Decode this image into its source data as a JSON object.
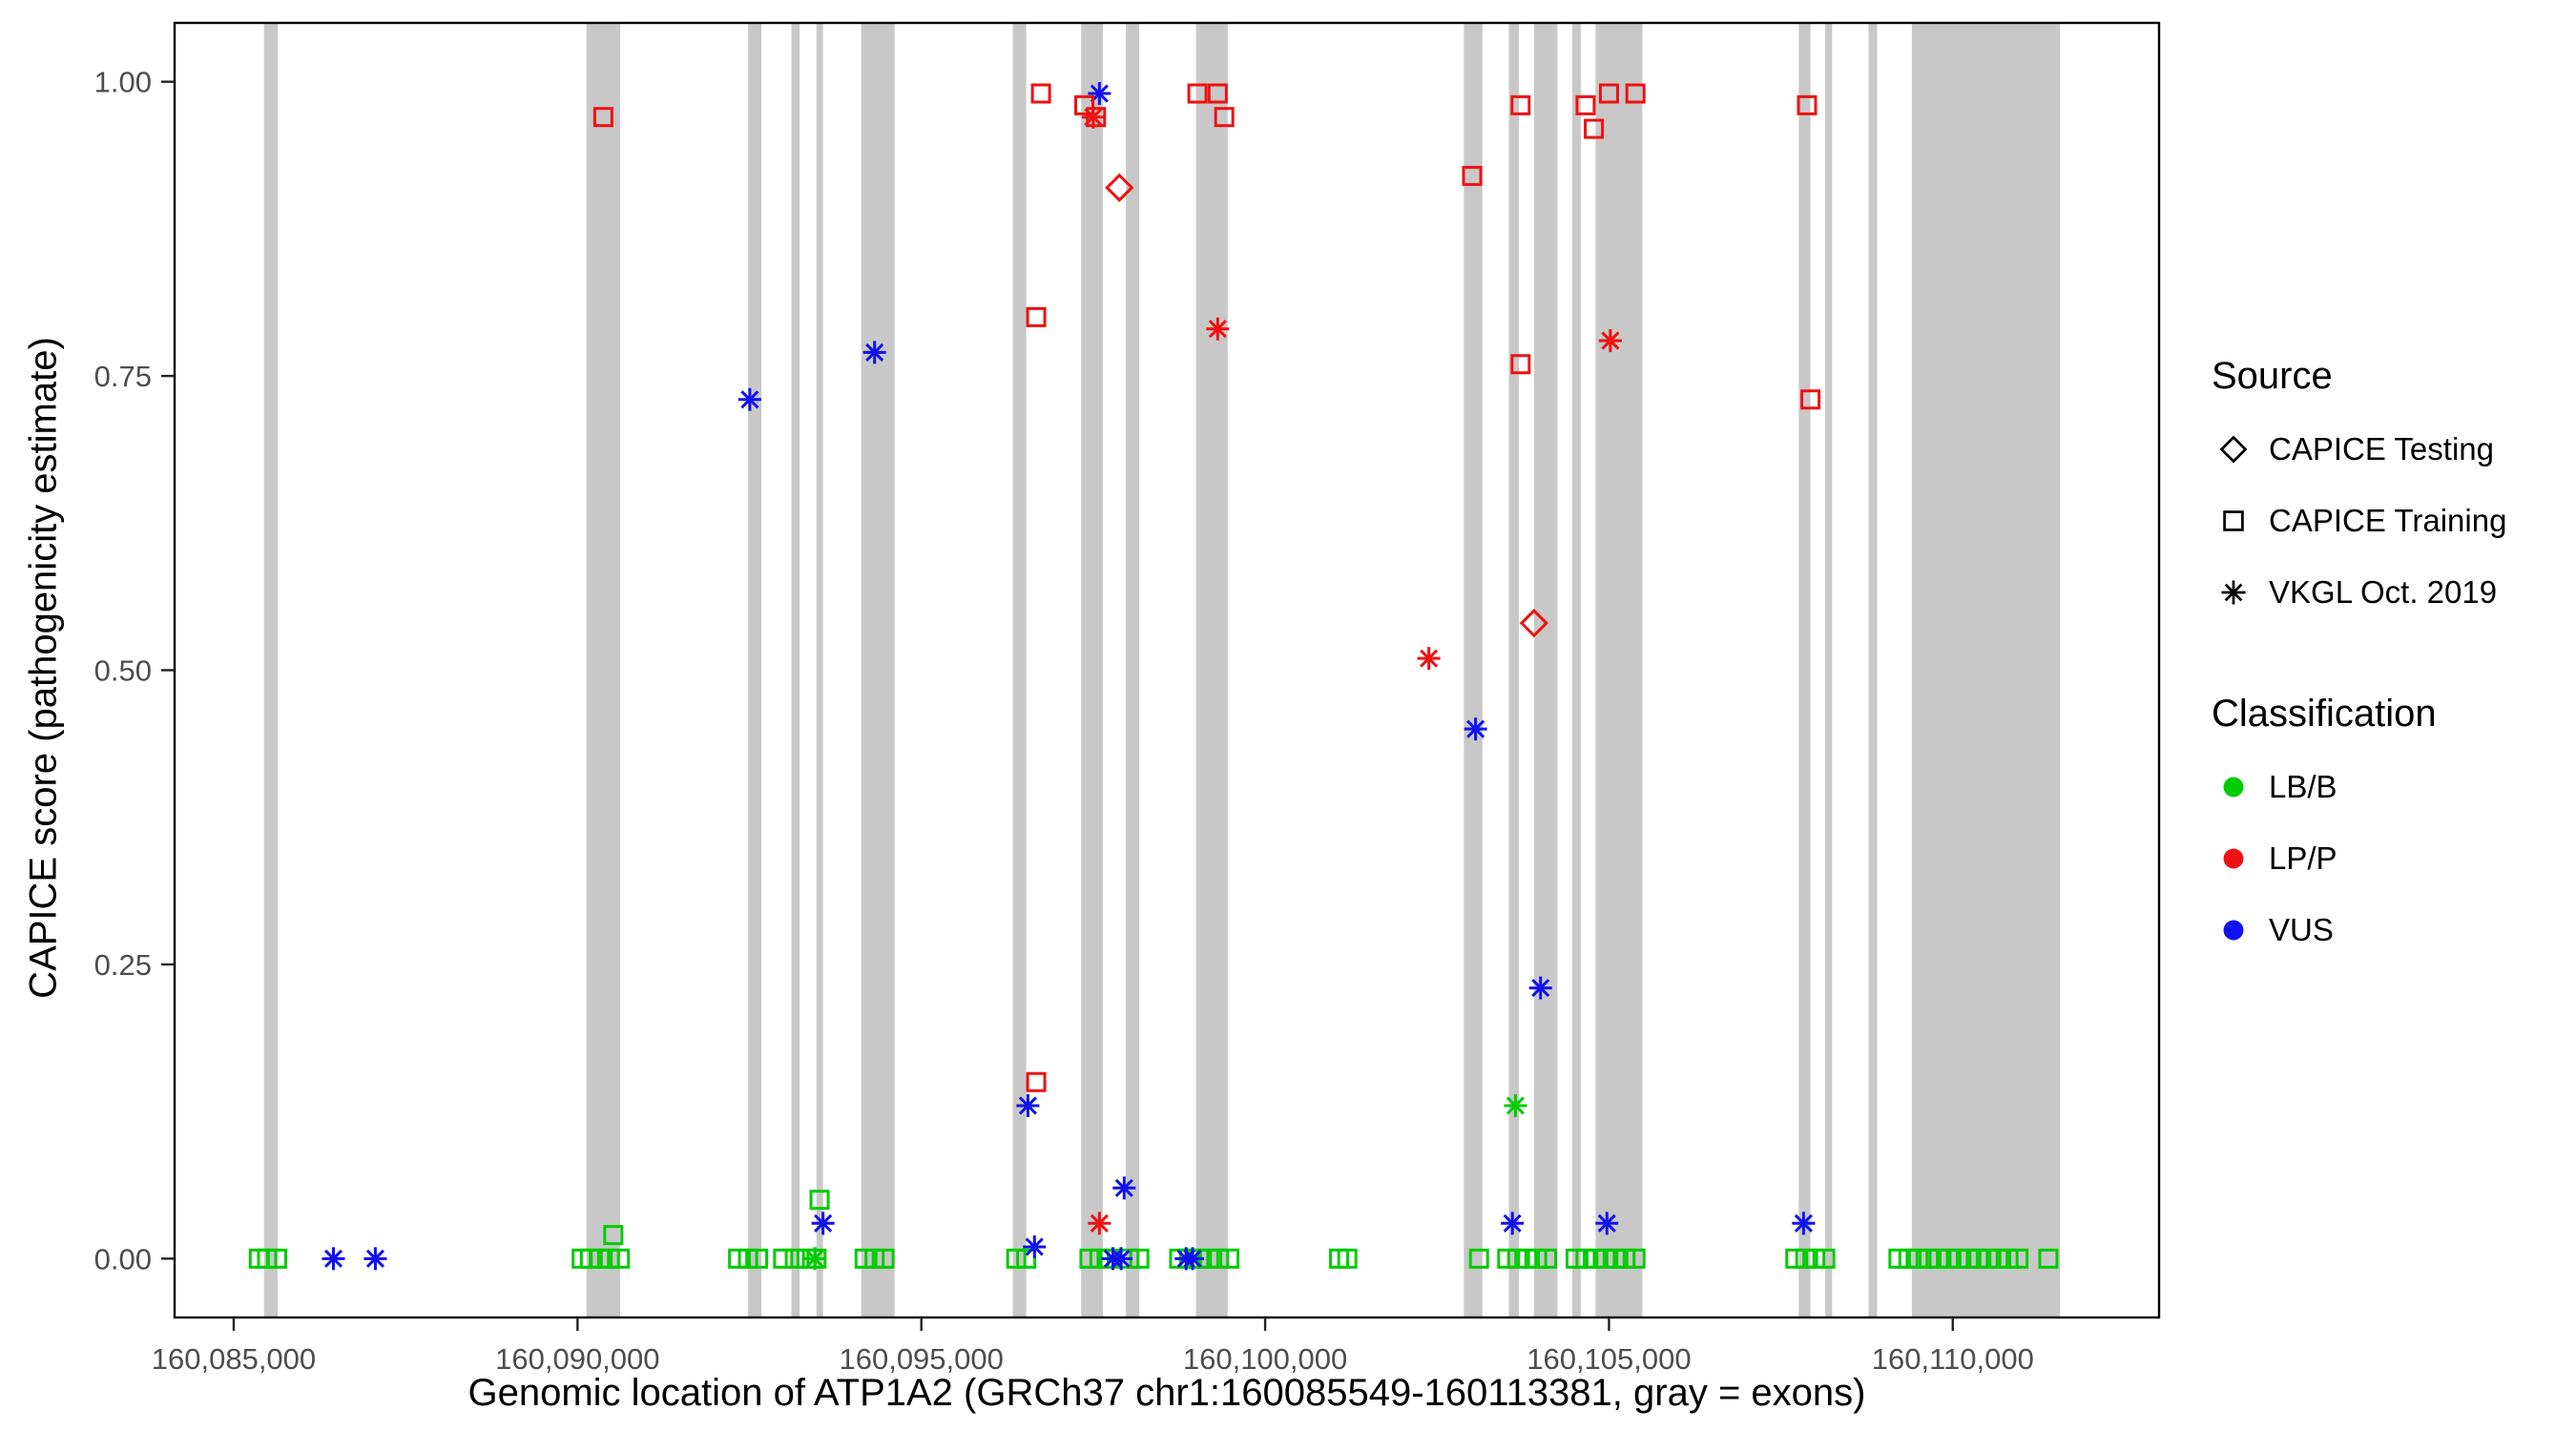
{
  "chart_data": {
    "type": "scatter",
    "title": "",
    "xlabel": "Genomic location of ATP1A2 (GRCh37 chr1:160085549-160113381, gray = exons)",
    "ylabel": "CAPICE score (pathogenicity estimate)",
    "xlim": [
      160084140,
      160113000
    ],
    "ylim": [
      -0.05,
      1.05
    ],
    "x_ticks": [
      160085000,
      160090000,
      160095000,
      160100000,
      160105000,
      160110000
    ],
    "x_tick_labels": [
      "160,085,000",
      "160,090,000",
      "160,095,000",
      "160,100,000",
      "160,105,000",
      "160,110,000"
    ],
    "y_ticks": [
      0.0,
      0.25,
      0.5,
      0.75,
      1.0
    ],
    "y_tick_labels": [
      "0.00",
      "0.25",
      "0.50",
      "0.75",
      "1.00"
    ],
    "grid": "off",
    "legend_position": "right",
    "exon_color": "#c8c8c8",
    "colors": {
      "LB/B": "#00cc00",
      "LP/P": "#ee1111",
      "VUS": "#1111ee"
    },
    "exons": [
      [
        160085440,
        160085640
      ],
      [
        160090130,
        160090620
      ],
      [
        160092480,
        160092675
      ],
      [
        160093110,
        160093230
      ],
      [
        160093475,
        160093570
      ],
      [
        160094125,
        160094610
      ],
      [
        160096330,
        160096525
      ],
      [
        160097325,
        160097640
      ],
      [
        160097975,
        160098170
      ],
      [
        160098995,
        160099455
      ],
      [
        160102890,
        160103160
      ],
      [
        160103545,
        160103690
      ],
      [
        160103910,
        160104250
      ],
      [
        160104465,
        160104590
      ],
      [
        160104805,
        160105485
      ],
      [
        160107760,
        160107930
      ],
      [
        160108145,
        160108245
      ],
      [
        160108775,
        160108900
      ],
      [
        160109405,
        160111560
      ]
    ],
    "series": [
      {
        "name": "CAPICE Training / LB/B",
        "source": "CAPICE Training",
        "classification": "LB/B",
        "marker": "square",
        "points": [
          [
            160085365,
            0.0
          ],
          [
            160085485,
            0.0
          ],
          [
            160085630,
            0.0
          ],
          [
            160090060,
            0.0
          ],
          [
            160090180,
            0.0
          ],
          [
            160090325,
            0.0
          ],
          [
            160090470,
            0.0
          ],
          [
            160090615,
            0.0
          ],
          [
            160090520,
            0.02
          ],
          [
            160092335,
            0.0
          ],
          [
            160092480,
            0.0
          ],
          [
            160092625,
            0.0
          ],
          [
            160092990,
            0.0
          ],
          [
            160093160,
            0.0
          ],
          [
            160093330,
            0.0
          ],
          [
            160093475,
            0.0
          ],
          [
            160093520,
            0.05
          ],
          [
            160094175,
            0.0
          ],
          [
            160094320,
            0.0
          ],
          [
            160094465,
            0.0
          ],
          [
            160096380,
            0.0
          ],
          [
            160096525,
            0.0
          ],
          [
            160097445,
            0.0
          ],
          [
            160097590,
            0.0
          ],
          [
            160097735,
            0.0
          ],
          [
            160098025,
            0.0
          ],
          [
            160098170,
            0.0
          ],
          [
            160098750,
            0.0
          ],
          [
            160098895,
            0.0
          ],
          [
            160099040,
            0.0
          ],
          [
            160099185,
            0.0
          ],
          [
            160099330,
            0.0
          ],
          [
            160099480,
            0.0
          ],
          [
            160101075,
            0.0
          ],
          [
            160101195,
            0.0
          ],
          [
            160103110,
            0.0
          ],
          [
            160103520,
            0.0
          ],
          [
            160103665,
            0.0
          ],
          [
            160103810,
            0.0
          ],
          [
            160103955,
            0.0
          ],
          [
            160104100,
            0.0
          ],
          [
            160104515,
            0.0
          ],
          [
            160104660,
            0.0
          ],
          [
            160104805,
            0.0
          ],
          [
            160104950,
            0.0
          ],
          [
            160105095,
            0.0
          ],
          [
            160105240,
            0.0
          ],
          [
            160105385,
            0.0
          ],
          [
            160107710,
            0.0
          ],
          [
            160107855,
            0.0
          ],
          [
            160108000,
            0.0
          ],
          [
            160108145,
            0.0
          ],
          [
            160109210,
            0.0
          ],
          [
            160109355,
            0.0
          ],
          [
            160109500,
            0.0
          ],
          [
            160109650,
            0.0
          ],
          [
            160109795,
            0.0
          ],
          [
            160109940,
            0.0
          ],
          [
            160110085,
            0.0
          ],
          [
            160110230,
            0.0
          ],
          [
            160110375,
            0.0
          ],
          [
            160110520,
            0.0
          ],
          [
            160110665,
            0.0
          ],
          [
            160110810,
            0.0
          ],
          [
            160110955,
            0.0
          ],
          [
            160111390,
            0.0
          ]
        ]
      },
      {
        "name": "VKGL Oct. 2019 / LB/B",
        "source": "VKGL Oct. 2019",
        "classification": "LB/B",
        "marker": "asterisk",
        "points": [
          [
            160093450,
            0.0
          ],
          [
            160103640,
            0.13
          ]
        ]
      },
      {
        "name": "VKGL Oct. 2019 / VUS",
        "source": "VKGL Oct. 2019",
        "classification": "VUS",
        "marker": "asterisk",
        "points": [
          [
            160086450,
            0.0
          ],
          [
            160087060,
            0.0
          ],
          [
            160092505,
            0.73
          ],
          [
            160094320,
            0.77
          ],
          [
            160093570,
            0.03
          ],
          [
            160096550,
            0.13
          ],
          [
            160096645,
            0.01
          ],
          [
            160097590,
            0.99
          ],
          [
            160097950,
            0.06
          ],
          [
            160097785,
            0.0
          ],
          [
            160097905,
            0.0
          ],
          [
            160098850,
            0.0
          ],
          [
            160098945,
            0.0
          ],
          [
            160103060,
            0.45
          ],
          [
            160103595,
            0.03
          ],
          [
            160104005,
            0.23
          ],
          [
            160104970,
            0.03
          ],
          [
            160107830,
            0.03
          ]
        ]
      },
      {
        "name": "CAPICE Training / LP/P",
        "source": "CAPICE Training",
        "classification": "LP/P",
        "marker": "square",
        "points": [
          [
            160090375,
            0.97
          ],
          [
            160096740,
            0.99
          ],
          [
            160096670,
            0.8
          ],
          [
            160096670,
            0.15
          ],
          [
            160097370,
            0.98
          ],
          [
            160097540,
            0.97
          ],
          [
            160099015,
            0.99
          ],
          [
            160099310,
            0.99
          ],
          [
            160099405,
            0.97
          ],
          [
            160103010,
            0.92
          ],
          [
            160103715,
            0.98
          ],
          [
            160103715,
            0.76
          ],
          [
            160104660,
            0.98
          ],
          [
            160104780,
            0.96
          ],
          [
            160105000,
            0.99
          ],
          [
            160105385,
            0.99
          ],
          [
            160107880,
            0.98
          ],
          [
            160107930,
            0.73
          ]
        ]
      },
      {
        "name": "VKGL Oct. 2019 / LP/P",
        "source": "VKGL Oct. 2019",
        "classification": "LP/P",
        "marker": "asterisk",
        "points": [
          [
            160097500,
            0.97
          ],
          [
            160097590,
            0.03
          ],
          [
            160099310,
            0.79
          ],
          [
            160102380,
            0.51
          ],
          [
            160105020,
            0.78
          ]
        ]
      },
      {
        "name": "CAPICE Testing / LP/P",
        "source": "CAPICE Testing",
        "classification": "LP/P",
        "marker": "diamond",
        "points": [
          [
            160097880,
            0.91
          ],
          [
            160103910,
            0.54
          ]
        ]
      }
    ]
  },
  "legend": {
    "source_title": "Source",
    "source_items": [
      {
        "label": "CAPICE Testing",
        "marker": "diamond"
      },
      {
        "label": "CAPICE Training",
        "marker": "square"
      },
      {
        "label": "VKGL Oct. 2019",
        "marker": "asterisk"
      }
    ],
    "class_title": "Classification",
    "class_items": [
      {
        "label": "LB/B",
        "color": "#00cc00"
      },
      {
        "label": "LP/P",
        "color": "#ee1111"
      },
      {
        "label": "VUS",
        "color": "#1111ee"
      }
    ]
  }
}
